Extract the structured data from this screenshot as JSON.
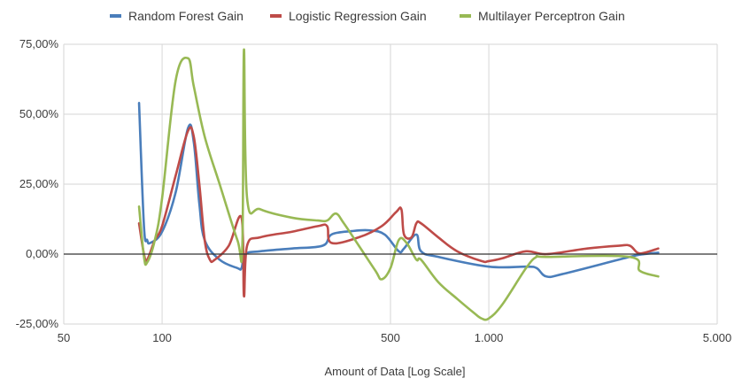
{
  "chart_data": {
    "type": "line",
    "title": "",
    "xlabel": "Amount of Data [Log Scale]",
    "ylabel": "",
    "x_scale": "log",
    "xlim": [
      50,
      5000
    ],
    "ylim": [
      -25,
      75
    ],
    "x_ticks": [
      50,
      100,
      500,
      1000,
      5000
    ],
    "x_tick_labels": [
      "50",
      "100",
      "500",
      "1.000",
      "5.000"
    ],
    "y_ticks": [
      -25,
      0,
      25,
      50,
      75
    ],
    "y_tick_labels": [
      "-25,00%",
      "0,00%",
      "25,00%",
      "50,00%",
      "75,00%"
    ],
    "grid": "horizontal",
    "legend_position": "top",
    "series": [
      {
        "name": "Random Forest Gain",
        "color": "#4a7ebb",
        "points": [
          [
            85,
            54
          ],
          [
            88,
            10
          ],
          [
            90,
            5
          ],
          [
            92,
            4
          ],
          [
            100,
            8
          ],
          [
            110,
            22
          ],
          [
            120,
            45
          ],
          [
            125,
            40
          ],
          [
            130,
            18
          ],
          [
            135,
            5
          ],
          [
            150,
            -2
          ],
          [
            170,
            -5
          ],
          [
            175,
            -5
          ],
          [
            180,
            0
          ],
          [
            200,
            1
          ],
          [
            250,
            2
          ],
          [
            310,
            3
          ],
          [
            330,
            7
          ],
          [
            380,
            8.2
          ],
          [
            430,
            8.5
          ],
          [
            480,
            7
          ],
          [
            530,
            1
          ],
          [
            550,
            2
          ],
          [
            600,
            7
          ],
          [
            620,
            1
          ],
          [
            700,
            -1
          ],
          [
            1000,
            -4.5
          ],
          [
            1300,
            -4.5
          ],
          [
            1400,
            -5
          ],
          [
            1500,
            -8
          ],
          [
            1700,
            -7
          ],
          [
            2700,
            -1
          ],
          [
            3000,
            0
          ],
          [
            3300,
            0.5
          ]
        ]
      },
      {
        "name": "Logistic Regression Gain",
        "color": "#be4b48",
        "points": [
          [
            85,
            11
          ],
          [
            88,
            0
          ],
          [
            90,
            -2
          ],
          [
            95,
            5
          ],
          [
            100,
            10
          ],
          [
            110,
            28
          ],
          [
            120,
            44
          ],
          [
            125,
            42
          ],
          [
            130,
            25
          ],
          [
            135,
            5
          ],
          [
            140,
            -2
          ],
          [
            145,
            -2
          ],
          [
            160,
            3
          ],
          [
            175,
            13
          ],
          [
            178,
            -15
          ],
          [
            182,
            3
          ],
          [
            200,
            6
          ],
          [
            250,
            8
          ],
          [
            300,
            10
          ],
          [
            320,
            10
          ],
          [
            330,
            4
          ],
          [
            400,
            6
          ],
          [
            470,
            10
          ],
          [
            520,
            15
          ],
          [
            540,
            16
          ],
          [
            550,
            7
          ],
          [
            580,
            6
          ],
          [
            600,
            11
          ],
          [
            620,
            11
          ],
          [
            700,
            6
          ],
          [
            800,
            1
          ],
          [
            950,
            -2.5
          ],
          [
            1000,
            -2.5
          ],
          [
            1100,
            -1.5
          ],
          [
            1300,
            1
          ],
          [
            1500,
            0
          ],
          [
            2000,
            2
          ],
          [
            2500,
            3
          ],
          [
            2700,
            3
          ],
          [
            2850,
            0.5
          ],
          [
            3000,
            0.5
          ],
          [
            3300,
            2
          ]
        ]
      },
      {
        "name": "Multilayer Perceptron Gain",
        "color": "#98b954",
        "points": [
          [
            85,
            17
          ],
          [
            88,
            -1
          ],
          [
            90,
            -3
          ],
          [
            95,
            5
          ],
          [
            100,
            20
          ],
          [
            110,
            62
          ],
          [
            120,
            70
          ],
          [
            125,
            60
          ],
          [
            135,
            42
          ],
          [
            150,
            25
          ],
          [
            170,
            5
          ],
          [
            176,
            3
          ],
          [
            178,
            73
          ],
          [
            182,
            20
          ],
          [
            200,
            16
          ],
          [
            250,
            13
          ],
          [
            300,
            12
          ],
          [
            320,
            12
          ],
          [
            340,
            14.5
          ],
          [
            360,
            11
          ],
          [
            400,
            3
          ],
          [
            450,
            -6
          ],
          [
            470,
            -9
          ],
          [
            500,
            -5
          ],
          [
            530,
            5
          ],
          [
            560,
            4
          ],
          [
            600,
            -2
          ],
          [
            620,
            -2
          ],
          [
            700,
            -10
          ],
          [
            800,
            -16
          ],
          [
            900,
            -21
          ],
          [
            950,
            -23
          ],
          [
            1000,
            -23
          ],
          [
            1100,
            -18
          ],
          [
            1300,
            -5
          ],
          [
            1400,
            -1
          ],
          [
            1500,
            -1
          ],
          [
            2700,
            -1
          ],
          [
            2900,
            -6
          ],
          [
            3300,
            -8
          ]
        ]
      }
    ]
  }
}
